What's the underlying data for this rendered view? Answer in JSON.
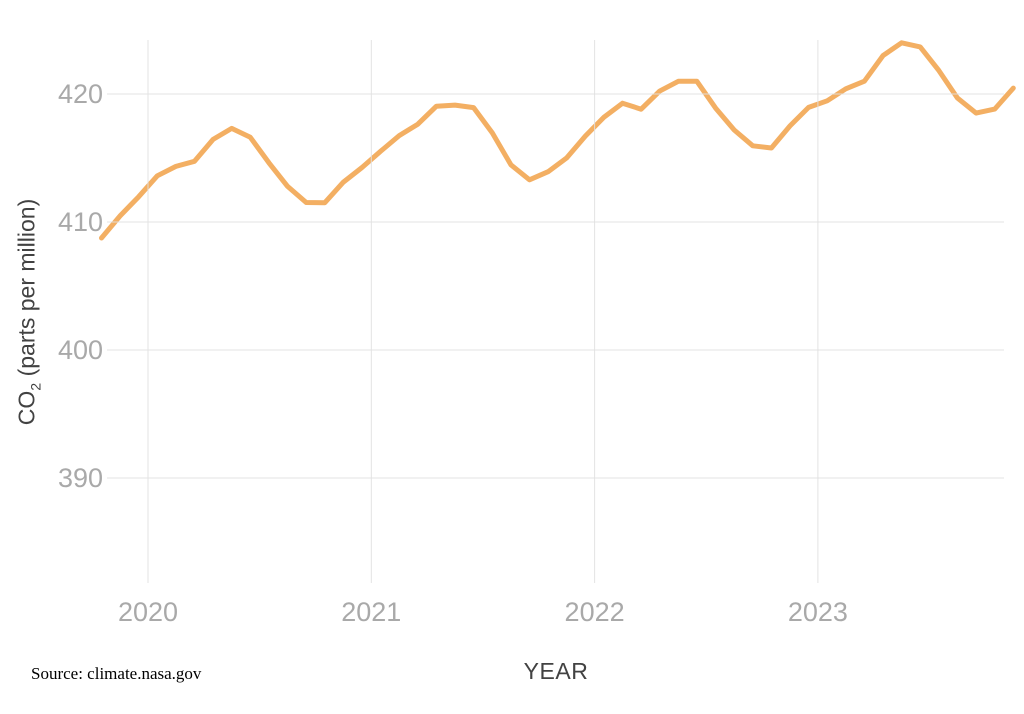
{
  "source_note": "Source: climate.nasa.gov",
  "axes": {
    "x": {
      "label": "YEAR",
      "tick_labels": [
        "2020",
        "2021",
        "2022",
        "2023"
      ],
      "tick_years": [
        2020,
        2021,
        2022,
        2023
      ]
    },
    "y": {
      "label_prefix": "CO",
      "label_sub": "2",
      "label_suffix": " (parts per million)",
      "tick_labels": [
        "420",
        "410",
        "400",
        "390"
      ],
      "tick_values": [
        420,
        410,
        400,
        390
      ]
    }
  },
  "colors": {
    "line": "#F3AF63",
    "gridline": "#E0E0E0",
    "tick_text": "#A9A9A9",
    "axis_title_text": "#424242",
    "source_text": "#000000",
    "background": "#FFFFFF"
  },
  "chart_data": {
    "type": "line",
    "title": "",
    "xlabel": "YEAR",
    "ylabel": "CO2 (parts per million)",
    "grid": true,
    "legend": false,
    "x_tick_years": [
      2020,
      2021,
      2022,
      2023
    ],
    "y_ticks": [
      420,
      410,
      400,
      390
    ],
    "ylim": [
      381.8,
      424.4
    ],
    "x": [
      "Oct 2019",
      "Nov 2019",
      "Dec 2019",
      "Jan 2020",
      "Feb 2020",
      "Mar 2020",
      "Apr 2020",
      "May 2020",
      "Jun 2020",
      "Jul 2020",
      "Aug 2020",
      "Sep 2020",
      "Oct 2020",
      "Nov 2020",
      "Dec 2020",
      "Jan 2021",
      "Feb 2021",
      "Mar 2021",
      "Apr 2021",
      "May 2021",
      "Jun 2021",
      "Jul 2021",
      "Aug 2021",
      "Sep 2021",
      "Oct 2021",
      "Nov 2021",
      "Dec 2021",
      "Jan 2022",
      "Feb 2022",
      "Mar 2022",
      "Apr 2022",
      "May 2022",
      "Jun 2022",
      "Jul 2022",
      "Aug 2022",
      "Sep 2022",
      "Oct 2022",
      "Nov 2022",
      "Dec 2022",
      "Jan 2023",
      "Feb 2023",
      "Mar 2023",
      "Apr 2023",
      "May 2023",
      "Jun 2023",
      "Jul 2023",
      "Aug 2023",
      "Sep 2023",
      "Oct 2023",
      "Nov 2023"
    ],
    "values": [
      408.75,
      410.48,
      411.98,
      413.61,
      414.34,
      414.74,
      416.45,
      417.31,
      416.62,
      414.62,
      412.78,
      411.52,
      411.51,
      413.12,
      414.26,
      415.52,
      416.75,
      417.64,
      419.05,
      419.13,
      418.94,
      416.96,
      414.47,
      413.3,
      413.93,
      415.01,
      416.71,
      418.19,
      419.28,
      418.81,
      420.23,
      420.99,
      420.99,
      418.9,
      417.19,
      415.95,
      415.78,
      417.51,
      418.95,
      419.47,
      420.41,
      421.0,
      423.0,
      424.0,
      423.68,
      421.83,
      419.68,
      418.51,
      418.82,
      420.46
    ]
  }
}
